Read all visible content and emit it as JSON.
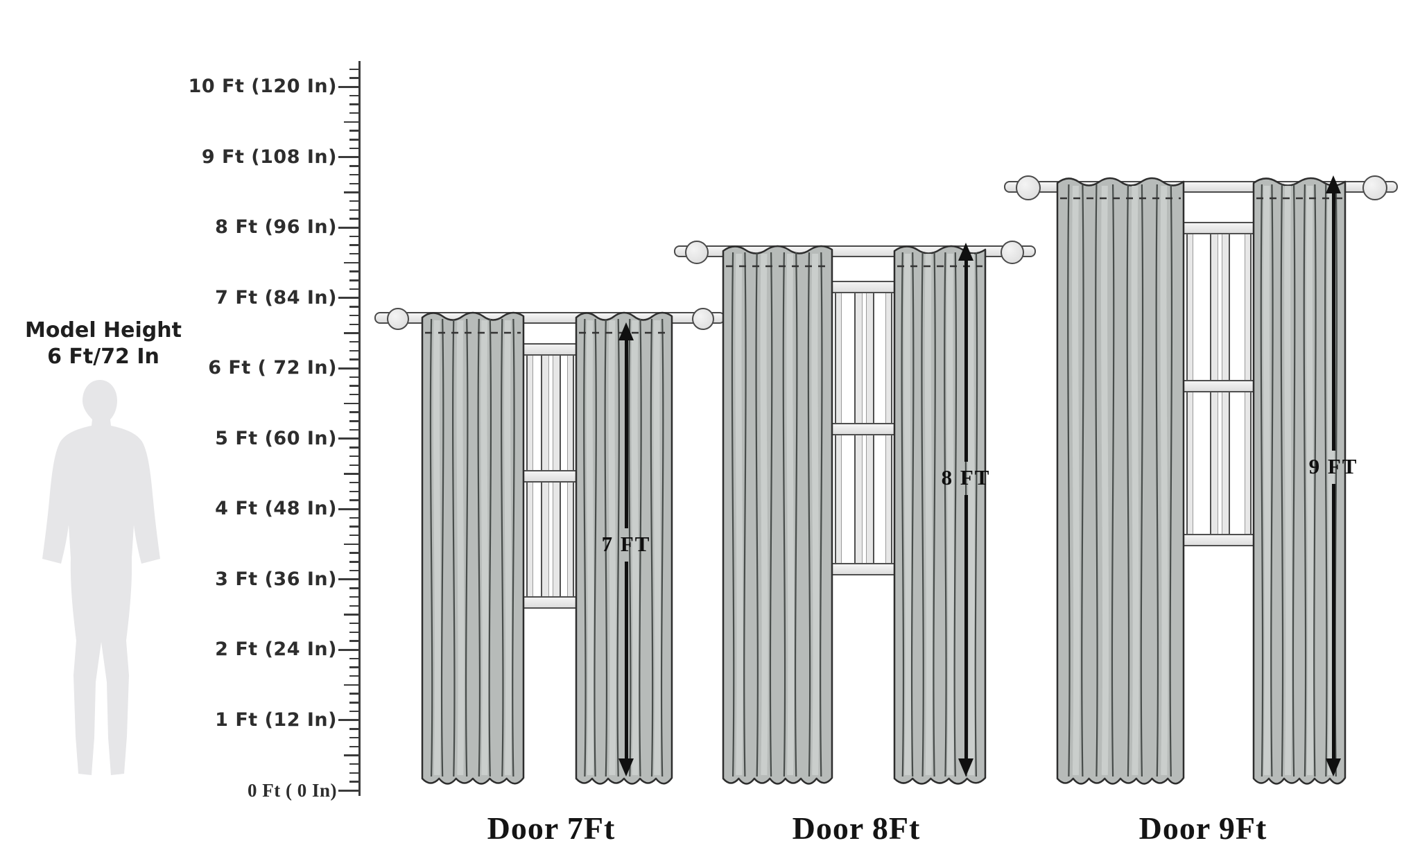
{
  "model": {
    "caption_line1": "Model Height",
    "caption_line2": "6 Ft/72 In"
  },
  "ruler": {
    "marks": [
      {
        "ft": 10,
        "label": "10 Ft (120 In)"
      },
      {
        "ft": 9,
        "label": "9 Ft (108 In)"
      },
      {
        "ft": 8,
        "label": "8 Ft (96 In)"
      },
      {
        "ft": 7,
        "label": "7 Ft (84 In)"
      },
      {
        "ft": 6,
        "label": "6 Ft ( 72 In)"
      },
      {
        "ft": 5,
        "label": "5 Ft (60 In)"
      },
      {
        "ft": 4,
        "label": "4 Ft (48 In)"
      },
      {
        "ft": 3,
        "label": "3 Ft (36 In)"
      },
      {
        "ft": 2,
        "label": "2 Ft (24 In)"
      },
      {
        "ft": 1,
        "label": "1 Ft (12 In)"
      },
      {
        "ft": 0,
        "label": "0 Ft ( 0  In)"
      }
    ]
  },
  "curtain_sets": [
    {
      "height_ft": 7,
      "height_label": "7 FT",
      "door_label": "Door 7Ft"
    },
    {
      "height_ft": 8,
      "height_label": "8 FT",
      "door_label": "Door 8Ft"
    },
    {
      "height_ft": 9,
      "height_label": "9 FT",
      "door_label": "Door 9Ft"
    }
  ],
  "colors": {
    "curtain_fill": "#b7bbb9",
    "curtain_fold_dark": "#474c4a",
    "curtain_fold_light": "#ccd0ce",
    "curtain_outline": "#2d2d2d",
    "hardware_outline": "#4a4a4a",
    "arrow": "#101010",
    "text": "#1c1c1c",
    "silhouette": "#e6e6e8"
  }
}
